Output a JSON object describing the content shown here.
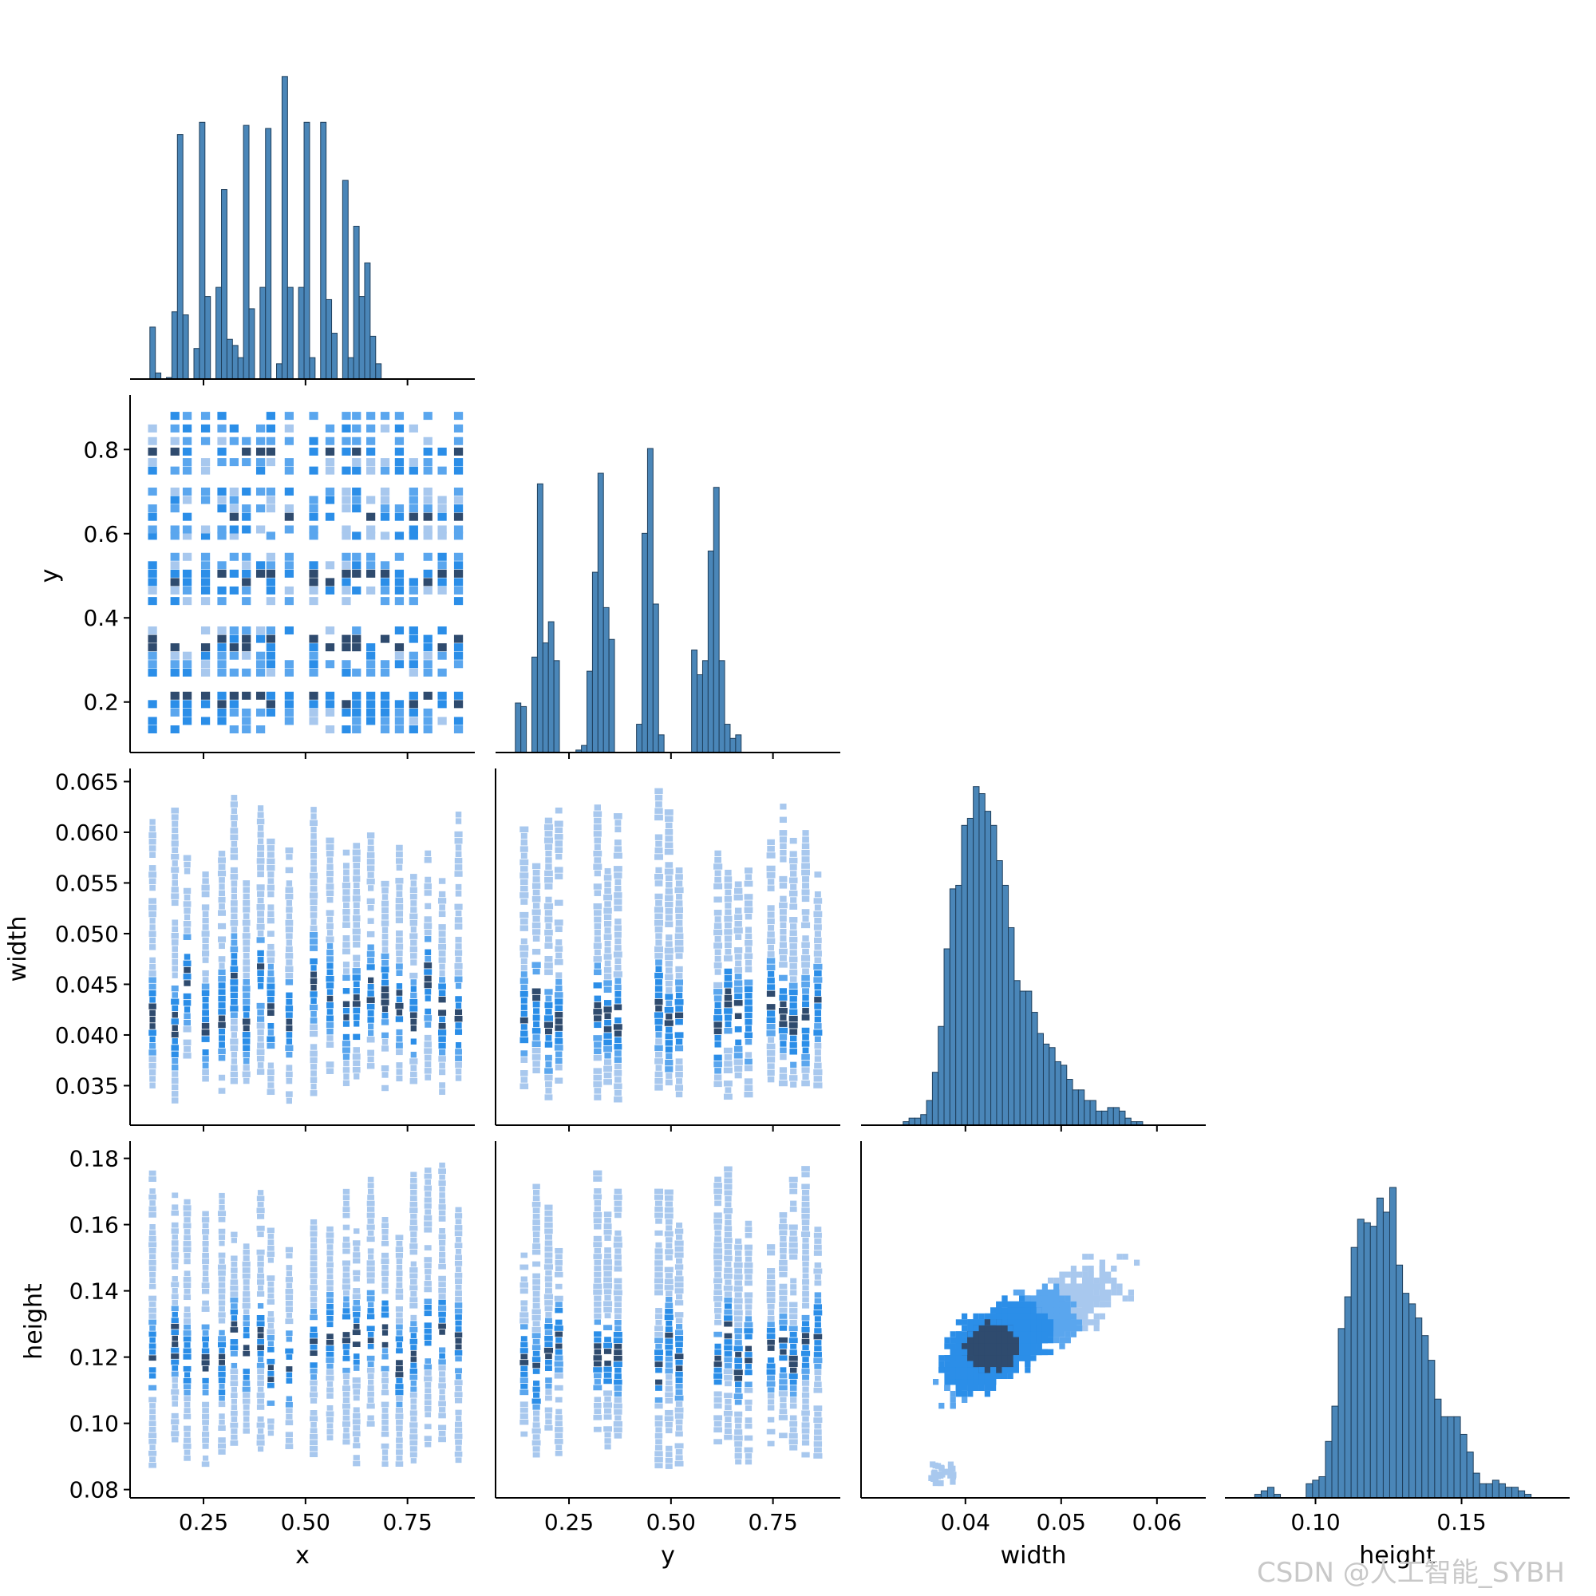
{
  "figure": {
    "watermark": "CSDN @人工智能_SYBH"
  },
  "colors": {
    "bar_fill": "#4a86b8",
    "bar_edge": "#1f3f5c",
    "heat_light": "#a8c8ee",
    "heat_mid": "#2b8ee8",
    "heat_dark": "#2f4b6e",
    "axis": "#000000"
  },
  "chart_data": [
    {
      "id": "hist-x",
      "type": "bar",
      "title": "",
      "xlabel": "",
      "ylabel": "",
      "xlim": [
        0.07,
        0.915
      ],
      "ylim": [
        0,
        1.0
      ],
      "bin_start": 0.105,
      "bin_width": 0.0135,
      "values": [
        0.0,
        0.17,
        0.02,
        0.0,
        0.005,
        0.22,
        0.8,
        0.21,
        0.0,
        0.1,
        0.84,
        0.27,
        0.0,
        0.3,
        0.62,
        0.13,
        0.11,
        0.07,
        0.83,
        0.23,
        0.0,
        0.3,
        0.82,
        0.0,
        0.05,
        0.99,
        0.3,
        0.0,
        0.3,
        0.84,
        0.07,
        0.0,
        0.84,
        0.26,
        0.15,
        0.0,
        0.65,
        0.07,
        0.5,
        0.27,
        0.38,
        0.14,
        0.05
      ],
      "xticks": [
        0.25,
        0.5,
        0.75
      ],
      "xtick_labels": [
        "0.25",
        "0.50",
        "0.75"
      ],
      "show_xtick_labels": false,
      "show_yaxis": false
    },
    {
      "id": "heat-x-y",
      "type": "heatmap",
      "xlabel": "",
      "ylabel": "y",
      "xlim": [
        0.07,
        0.915
      ],
      "ylim": [
        0.08,
        0.92
      ],
      "x_centers": [
        0.125,
        0.18,
        0.21,
        0.255,
        0.295,
        0.325,
        0.355,
        0.39,
        0.415,
        0.46,
        0.52,
        0.56,
        0.6,
        0.625,
        0.66,
        0.695,
        0.73,
        0.765,
        0.8,
        0.835,
        0.875
      ],
      "y_centers": [
        0.135,
        0.155,
        0.175,
        0.195,
        0.215,
        0.27,
        0.29,
        0.31,
        0.33,
        0.35,
        0.37,
        0.44,
        0.465,
        0.485,
        0.505,
        0.525,
        0.545,
        0.595,
        0.61,
        0.64,
        0.66,
        0.68,
        0.7,
        0.75,
        0.77,
        0.795,
        0.82,
        0.85,
        0.88
      ],
      "ytick_labels": [
        "0.2",
        "0.4",
        "0.6",
        "0.8"
      ],
      "yticks": [
        0.2,
        0.4,
        0.6,
        0.8
      ],
      "xticks": [
        0.25,
        0.5,
        0.75
      ],
      "show_xtick_labels": false
    },
    {
      "id": "hist-y",
      "type": "bar",
      "xlabel": "",
      "ylabel": "",
      "xlim": [
        0.07,
        0.915
      ],
      "ylim": [
        0,
        1.0
      ],
      "bin_start": 0.105,
      "bin_width": 0.0135,
      "values": [
        0.0,
        0.14,
        0.13,
        0.0,
        0.27,
        0.76,
        0.31,
        0.37,
        0.26,
        0.0,
        0.0,
        0.0,
        0.007,
        0.02,
        0.23,
        0.51,
        0.79,
        0.41,
        0.32,
        0.0,
        0.0,
        0.0,
        0.0,
        0.08,
        0.62,
        0.86,
        0.42,
        0.05,
        0.0,
        0.0,
        0.0,
        0.0,
        0.0,
        0.29,
        0.22,
        0.26,
        0.57,
        0.75,
        0.26,
        0.08,
        0.04,
        0.05,
        0.0
      ],
      "xticks": [
        0.25,
        0.5,
        0.75
      ],
      "show_xtick_labels": false,
      "show_yaxis": false
    },
    {
      "id": "heat-x-width",
      "type": "heatmap",
      "ylabel": "width",
      "xlim": [
        0.07,
        0.915
      ],
      "ylim": [
        0.0311,
        0.0659
      ],
      "yticks": [
        0.035,
        0.04,
        0.045,
        0.05,
        0.055,
        0.06,
        0.065
      ],
      "ytick_labels": [
        "0.035",
        "0.040",
        "0.045",
        "0.050",
        "0.055",
        "0.060",
        "0.065"
      ],
      "xticks": [
        0.25,
        0.5,
        0.75
      ],
      "show_xtick_labels": false
    },
    {
      "id": "heat-y-width",
      "type": "heatmap",
      "xlim": [
        0.07,
        0.915
      ],
      "ylim": [
        0.0311,
        0.0659
      ],
      "xticks": [
        0.25,
        0.5,
        0.75
      ],
      "show_xtick_labels": false
    },
    {
      "id": "hist-width",
      "type": "bar",
      "xlim": [
        0.0291,
        0.0651
      ],
      "ylim": [
        0,
        1.0
      ],
      "bin_start": 0.0335,
      "bin_width": 0.00061,
      "values": [
        0.01,
        0.02,
        0.02,
        0.03,
        0.07,
        0.15,
        0.28,
        0.5,
        0.67,
        0.68,
        0.85,
        0.87,
        0.96,
        0.94,
        0.89,
        0.85,
        0.75,
        0.68,
        0.56,
        0.41,
        0.38,
        0.38,
        0.32,
        0.26,
        0.23,
        0.22,
        0.18,
        0.17,
        0.13,
        0.1,
        0.1,
        0.07,
        0.07,
        0.04,
        0.04,
        0.05,
        0.05,
        0.04,
        0.02,
        0.01,
        0.01,
        0.0
      ],
      "xticks": [
        0.04,
        0.05,
        0.06
      ],
      "show_xtick_labels": false,
      "show_yaxis": false
    },
    {
      "id": "heat-x-height",
      "type": "heatmap",
      "xlabel": "x",
      "ylabel": "height",
      "xlim": [
        0.07,
        0.915
      ],
      "ylim": [
        0.0775,
        0.184
      ],
      "xticks": [
        0.25,
        0.5,
        0.75
      ],
      "xtick_labels": [
        "0.25",
        "0.50",
        "0.75"
      ],
      "yticks": [
        0.08,
        0.1,
        0.12,
        0.14,
        0.16,
        0.18
      ],
      "ytick_labels": [
        "0.08",
        "0.10",
        "0.12",
        "0.14",
        "0.16",
        "0.18"
      ]
    },
    {
      "id": "heat-y-height",
      "type": "heatmap",
      "xlabel": "y",
      "xlim": [
        0.07,
        0.915
      ],
      "ylim": [
        0.0775,
        0.184
      ],
      "xticks": [
        0.25,
        0.5,
        0.75
      ],
      "xtick_labels": [
        "0.25",
        "0.50",
        "0.75"
      ]
    },
    {
      "id": "heat-width-height",
      "type": "heatmap",
      "xlabel": "width",
      "xlim": [
        0.0291,
        0.0651
      ],
      "ylim": [
        0.0775,
        0.184
      ],
      "xticks": [
        0.04,
        0.05,
        0.06
      ],
      "xtick_labels": [
        "0.04",
        "0.05",
        "0.06"
      ],
      "core": {
        "width": 0.0425,
        "height": 0.122
      }
    },
    {
      "id": "hist-height",
      "type": "bar",
      "xlabel": "height",
      "xlim": [
        0.069,
        0.187
      ],
      "ylim": [
        0,
        1.0
      ],
      "bin_start": 0.077,
      "bin_width": 0.0022,
      "values": [
        0.0,
        0.01,
        0.02,
        0.03,
        0.01,
        0.0,
        0.0,
        0.0,
        0.0,
        0.04,
        0.05,
        0.06,
        0.16,
        0.26,
        0.48,
        0.57,
        0.71,
        0.79,
        0.78,
        0.77,
        0.85,
        0.81,
        0.88,
        0.66,
        0.58,
        0.55,
        0.51,
        0.46,
        0.39,
        0.28,
        0.23,
        0.23,
        0.23,
        0.18,
        0.13,
        0.07,
        0.04,
        0.04,
        0.05,
        0.04,
        0.03,
        0.03,
        0.02,
        0.01,
        0.0
      ],
      "xticks": [
        0.1,
        0.15
      ],
      "xtick_labels": [
        "0.10",
        "0.15"
      ],
      "show_yaxis": false
    }
  ]
}
